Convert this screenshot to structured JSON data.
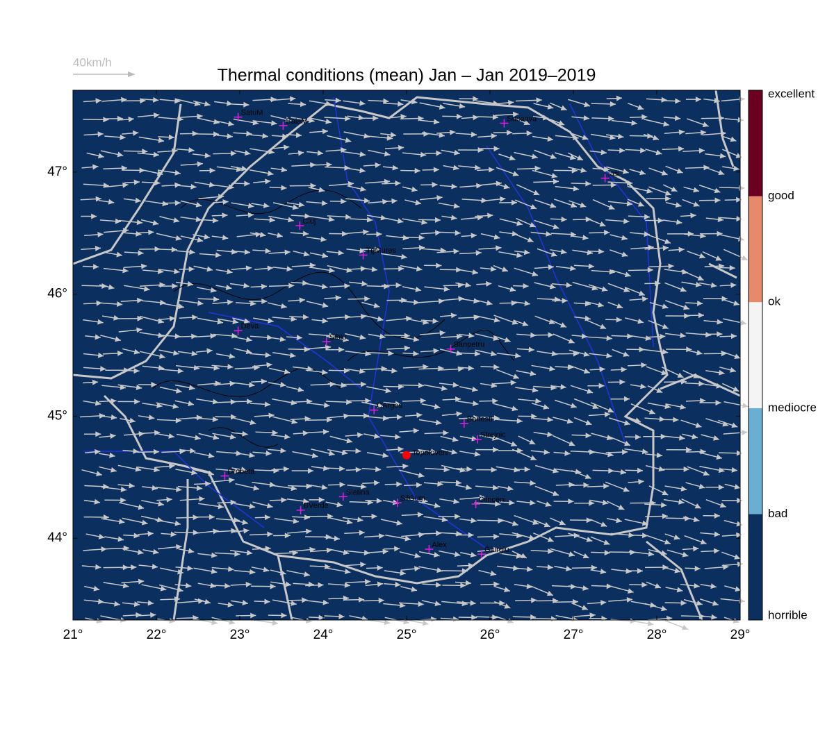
{
  "map": {
    "title": "Thermal conditions (mean) Jan – Jan  2019–2019",
    "wind_legend": "40km/h",
    "xlim": [
      21,
      29
    ],
    "ylim": [
      43.33,
      47.67
    ],
    "xticks": [
      {
        "value": 21,
        "label": "21°"
      },
      {
        "value": 22,
        "label": "22°"
      },
      {
        "value": 23,
        "label": "23°"
      },
      {
        "value": 24,
        "label": "24°"
      },
      {
        "value": 25,
        "label": "25°"
      },
      {
        "value": 26,
        "label": "26°"
      },
      {
        "value": 27,
        "label": "27°"
      },
      {
        "value": 28,
        "label": "28°"
      },
      {
        "value": 29,
        "label": "29°"
      }
    ],
    "yticks": [
      {
        "value": 44,
        "label": "44°"
      },
      {
        "value": 45,
        "label": "45°"
      },
      {
        "value": 46,
        "label": "46°"
      },
      {
        "value": 47,
        "label": "47°"
      }
    ],
    "cities": [
      {
        "name": "SatuM",
        "lon": 22.98,
        "lat": 47.45
      },
      {
        "name": "BaiaM",
        "lon": 23.52,
        "lat": 47.38
      },
      {
        "name": "Suceava",
        "lon": 26.17,
        "lat": 47.4
      },
      {
        "name": "Iasi",
        "lon": 27.38,
        "lat": 46.95
      },
      {
        "name": "Cluj",
        "lon": 23.72,
        "lat": 46.56
      },
      {
        "name": "TgMures",
        "lon": 24.48,
        "lat": 46.32
      },
      {
        "name": "Deva",
        "lon": 22.98,
        "lat": 45.7
      },
      {
        "name": "Sibiu",
        "lon": 24.04,
        "lat": 45.61
      },
      {
        "name": "Sanpetru",
        "lon": 25.53,
        "lat": 45.55
      },
      {
        "name": "CArges",
        "lon": 24.61,
        "lat": 45.05
      },
      {
        "name": "Banesti",
        "lon": 25.69,
        "lat": 44.94
      },
      {
        "name": "Strejnic",
        "lon": 25.85,
        "lat": 44.81
      },
      {
        "name": "Drobeta",
        "lon": 22.82,
        "lat": 44.51
      },
      {
        "name": "Slatina",
        "lon": 24.24,
        "lat": 44.34
      },
      {
        "name": "SilGum",
        "lon": 24.89,
        "lat": 44.29
      },
      {
        "name": "Clinceni",
        "lon": 25.83,
        "lat": 44.28
      },
      {
        "name": "BVerde",
        "lon": 23.73,
        "lat": 44.23
      },
      {
        "name": "Alex",
        "lon": 25.27,
        "lat": 43.91
      },
      {
        "name": "Giurgiu",
        "lon": 25.9,
        "lat": 43.87
      }
    ],
    "highlight": {
      "name": "Topoloveni",
      "lon": 25.0,
      "lat": 44.68,
      "color": "#ff0000"
    },
    "colorbar": {
      "labels": [
        "horrible",
        "bad",
        "mediocre",
        "ok",
        "good",
        "excellent"
      ],
      "colors": [
        "#0b3060",
        "#6aaed3",
        "#f4f4f4",
        "#e68a6a",
        "#6b0020"
      ]
    }
  }
}
